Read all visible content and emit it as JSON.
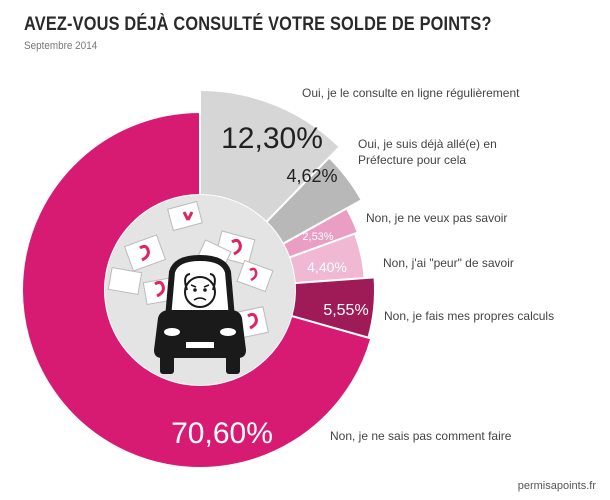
{
  "title": "AVEZ-VOUS DÉJÀ CONSULTÉ VOTRE SOLDE DE POINTS?",
  "subtitle": "Septembre 2014",
  "source": "permisapoints.fr",
  "chart_data": {
    "type": "pie",
    "slices": [
      {
        "label": [
          "Oui, je le consulte en ligne régulièrement"
        ],
        "value": 12.3,
        "value_text": "12,30%",
        "color": "#d6d6d6"
      },
      {
        "label": [
          "Oui, je suis déjà allé(e) en",
          "Préfecture pour cela"
        ],
        "value": 4.62,
        "value_text": "4,62%",
        "color": "#b8b8b8"
      },
      {
        "label": [
          "Non, je ne veux pas savoir"
        ],
        "value": 2.53,
        "value_text": "2,53%",
        "color": "#ea9ec4"
      },
      {
        "label": [
          "Non, j'ai \"peur\" de savoir"
        ],
        "value": 4.4,
        "value_text": "4,40%",
        "color": "#f0b8d3"
      },
      {
        "label": [
          "Non, je fais mes propres calculs"
        ],
        "value": 5.55,
        "value_text": "5,55%",
        "color": "#9e1b57"
      },
      {
        "label": [
          "Non, je ne sais pas comment faire"
        ],
        "value": 70.6,
        "value_text": "70,60%",
        "color": "#d81b72"
      }
    ],
    "center_illustration": "car-with-worried-driver-and-flying-point-cards",
    "center_color": "#e4e4e4"
  }
}
